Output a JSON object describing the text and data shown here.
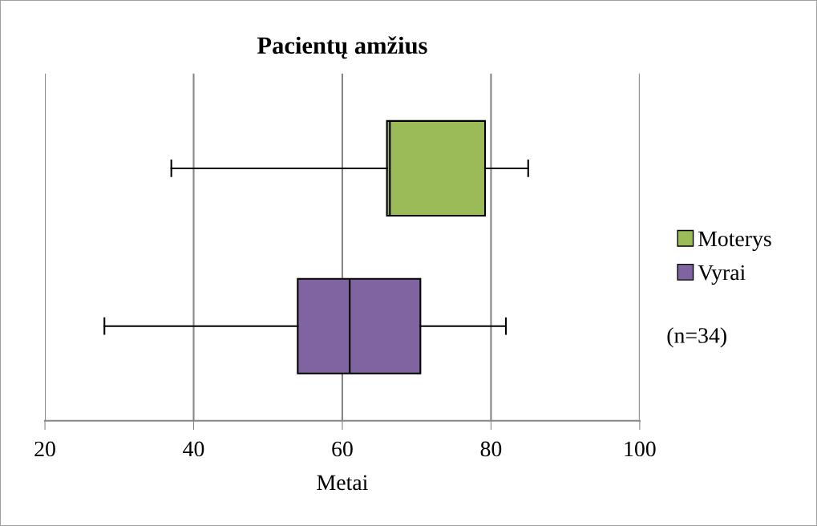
{
  "chart_data": {
    "type": "box",
    "orientation": "horizontal",
    "title": "Pacientų amžius",
    "xlabel": "Metai",
    "categories": [
      null,
      null
    ],
    "series": [
      {
        "name": "Moterys",
        "color": "#9bbb59",
        "boxes": [
          {
            "low": 37,
            "q1": 66,
            "median": 66.4,
            "q3": 79.2,
            "high": 85
          },
          null
        ]
      },
      {
        "name": "Vyrai",
        "color": "#8064a2",
        "boxes": [
          null,
          {
            "low": 28,
            "q1": 54,
            "median": 61,
            "q3": 70.5,
            "high": 82
          }
        ]
      }
    ],
    "xlim": [
      20,
      100
    ],
    "xticks": [
      20,
      40,
      60,
      80,
      100
    ],
    "grid": "x",
    "legend": "right",
    "annotations": [
      "(n=34)"
    ]
  }
}
